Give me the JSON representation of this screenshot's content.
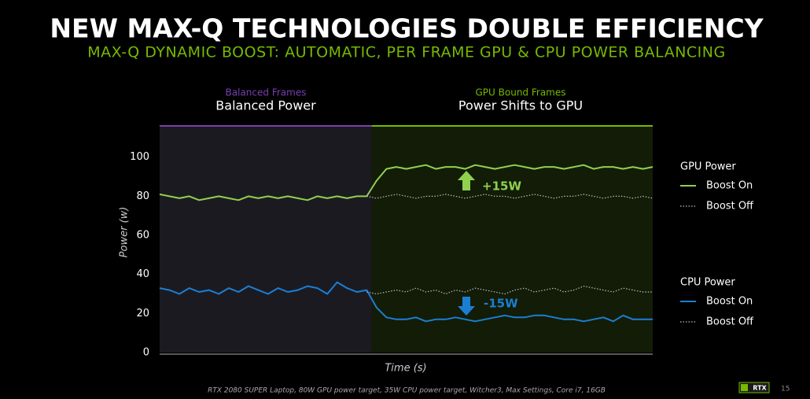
{
  "chart_data": {
    "type": "line",
    "title": "NEW MAX-Q TECHNOLOGIES DOUBLE EFFICIENCY",
    "subtitle": "MAX-Q DYNAMIC BOOST: AUTOMATIC, PER FRAME GPU & CPU POWER BALANCING",
    "y_label": "Power (w)",
    "x_label": "Time (s)",
    "ylim": [
      0,
      116
    ],
    "yticks": [
      0,
      20,
      40,
      60,
      80,
      100
    ],
    "regions": [
      {
        "heading": "Balanced Frames",
        "subheading": "Balanced Power",
        "color": "#7a3fb0"
      },
      {
        "heading": "GPU Bound Frames",
        "subheading": "Power Shifts to GPU",
        "color": "#76b900"
      }
    ],
    "annotations": [
      "+15W",
      "-15W"
    ],
    "legend_titles": [
      {
        "highlight": "GPU",
        "text": "Power"
      },
      {
        "highlight": "CPU",
        "text": "Power"
      }
    ],
    "series": [
      {
        "name": "Boost On",
        "color": "#8fd14f",
        "dash": false,
        "values": [
          81,
          80,
          79,
          80,
          78,
          79,
          80,
          79,
          78,
          80,
          79,
          80,
          79,
          80,
          79,
          78,
          80,
          79,
          80,
          79,
          80,
          80,
          88,
          94,
          95,
          94,
          95,
          96,
          94,
          95,
          95,
          94,
          96,
          95,
          94,
          95,
          96,
          95,
          94,
          95,
          95,
          94,
          95,
          96,
          94,
          95,
          95,
          94,
          95,
          94,
          95
        ]
      },
      {
        "name": "Boost Off",
        "color": "#bbbbbb",
        "dash": true,
        "values": [
          null,
          null,
          null,
          null,
          null,
          null,
          null,
          null,
          null,
          null,
          null,
          null,
          null,
          null,
          null,
          null,
          null,
          null,
          null,
          null,
          null,
          80,
          79,
          80,
          81,
          80,
          79,
          80,
          80,
          81,
          80,
          79,
          80,
          81,
          80,
          80,
          79,
          80,
          81,
          80,
          79,
          80,
          80,
          81,
          80,
          79,
          80,
          80,
          79,
          80,
          79
        ]
      },
      {
        "name": "Boost On",
        "color": "#1a7fd4",
        "dash": false,
        "values": [
          33,
          32,
          30,
          33,
          31,
          32,
          30,
          33,
          31,
          34,
          32,
          30,
          33,
          31,
          32,
          34,
          33,
          30,
          36,
          33,
          31,
          32,
          23,
          18,
          17,
          17,
          18,
          16,
          17,
          17,
          18,
          17,
          16,
          17,
          18,
          19,
          18,
          18,
          19,
          19,
          18,
          17,
          17,
          16,
          17,
          18,
          16,
          19,
          17,
          17,
          17
        ]
      },
      {
        "name": "Boost Off",
        "color": "#bbbbbb",
        "dash": true,
        "values": [
          null,
          null,
          null,
          null,
          null,
          null,
          null,
          null,
          null,
          null,
          null,
          null,
          null,
          null,
          null,
          null,
          null,
          null,
          null,
          null,
          null,
          31,
          30,
          31,
          32,
          31,
          33,
          31,
          32,
          30,
          32,
          31,
          33,
          32,
          31,
          30,
          32,
          33,
          31,
          32,
          33,
          31,
          32,
          34,
          33,
          32,
          31,
          33,
          32,
          31,
          31
        ]
      }
    ],
    "footnote": "RTX 2080 SUPER Laptop, 80W GPU power target, 35W CPU power target, Witcher3, Max Settings, Core i7, 16GB",
    "page_number": "15",
    "logo": "RTX"
  }
}
